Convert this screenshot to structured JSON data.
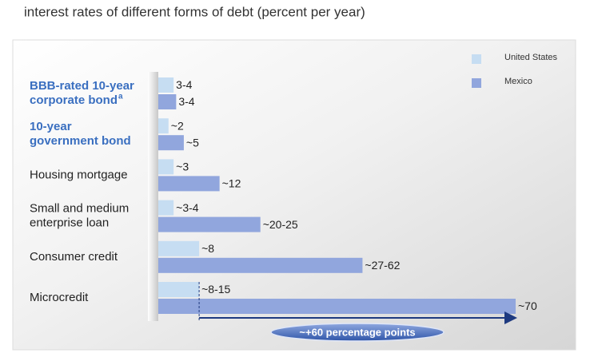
{
  "chart_data": {
    "type": "grouped-hbar",
    "title": "interest rates of different forms of debt (percent per year)",
    "categories": [
      [
        "BBB-rated 10-year",
        "corporate bond"
      ],
      [
        "10-year",
        "government bond"
      ],
      [
        "Housing mortgage"
      ],
      [
        "Small and medium",
        "enterprise loan"
      ],
      [
        "Consumer credit"
      ],
      [
        "Microcredit"
      ]
    ],
    "category_notes": [
      "a",
      null,
      null,
      null,
      null,
      null
    ],
    "emphasized_categories": [
      0,
      1
    ],
    "xlim": [
      0,
      70
    ],
    "series": [
      {
        "name": "United States",
        "color": "#c6ddf2",
        "values": [
          3,
          2,
          3,
          3,
          8,
          8
        ],
        "value_labels": [
          "3-4",
          "~2",
          "~3",
          "~3-4",
          "~8",
          "~8-15"
        ]
      },
      {
        "name": "Mexico",
        "color": "#91a6dd",
        "values": [
          3.5,
          5,
          12,
          20,
          40,
          70
        ],
        "value_labels": [
          "3-4",
          "~5",
          "~12",
          "~20-25",
          "~27-62",
          "~70"
        ]
      }
    ],
    "annotation": "~+60 percentage points"
  }
}
